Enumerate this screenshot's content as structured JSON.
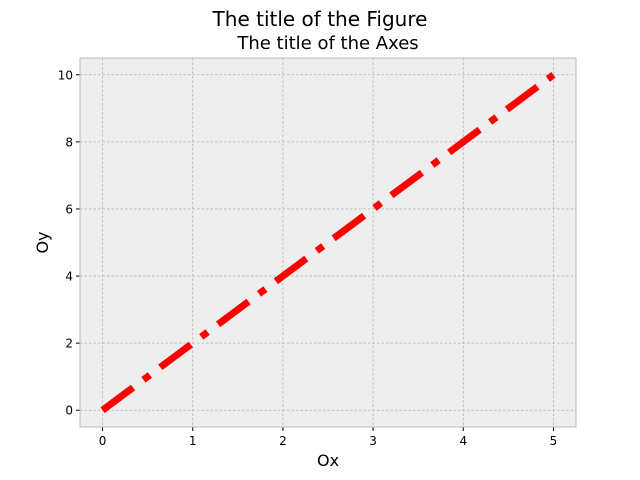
{
  "figure": {
    "title": "The title of the Figure"
  },
  "chart_data": {
    "type": "line",
    "title": "The title of the Axes",
    "xlabel": "Ox",
    "ylabel": "Oy",
    "xlim": [
      -0.25,
      5.25
    ],
    "ylim": [
      -0.5,
      10.5
    ],
    "xticks": [
      0,
      1,
      2,
      3,
      4,
      5
    ],
    "yticks": [
      0,
      2,
      4,
      6,
      8,
      10
    ],
    "grid": true,
    "series": [
      {
        "x": [
          0,
          1,
          2,
          3,
          4,
          5
        ],
        "y": [
          0,
          2,
          4,
          6,
          8,
          10
        ],
        "color": "#ff0000",
        "linestyle": "dashdot"
      }
    ],
    "colors": {
      "axes_background": "#eeeeee",
      "grid": "#b2b2b2",
      "spine": "#bcbcbc"
    }
  }
}
